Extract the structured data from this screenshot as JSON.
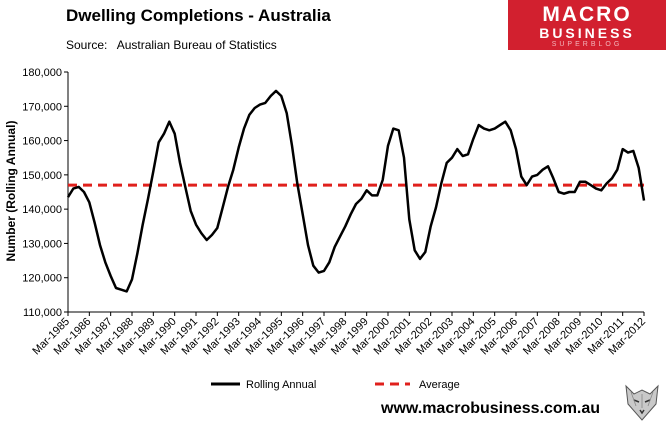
{
  "header": {
    "title": "Dwelling Completions - Australia",
    "source": "Source:   Australian Bureau of Statistics"
  },
  "logo": {
    "line1": "MACRO",
    "line2": "BUSINESS",
    "line3": "SUPERBLOG"
  },
  "footer": {
    "url": "www.macrobusiness.com.au"
  },
  "colors": {
    "series_line": "#000000",
    "average_line": "#e0201c",
    "brand": "#d2202f"
  },
  "wolf_icon": "wolf-emblem-icon",
  "chart_data": {
    "type": "line",
    "title": "Dwelling Completions - Australia",
    "ylabel": "Number (Rolling Annual)",
    "xlabel": "",
    "ylim": [
      110000,
      180000
    ],
    "y_ticks": [
      110000,
      120000,
      130000,
      140000,
      150000,
      160000,
      170000,
      180000
    ],
    "y_tick_labels": [
      "110,000",
      "120,000",
      "130,000",
      "140,000",
      "150,000",
      "160,000",
      "170,000",
      "180,000"
    ],
    "x_tick_labels": [
      "Mar-1985",
      "Mar-1986",
      "Mar-1987",
      "Mar-1988",
      "Mar-1989",
      "Mar-1990",
      "Mar-1991",
      "Mar-1992",
      "Mar-1993",
      "Mar-1994",
      "Mar-1995",
      "Mar-1996",
      "Mar-1997",
      "Mar-1998",
      "Mar-1999",
      "Mar-2000",
      "Mar-2001",
      "Mar-2002",
      "Mar-2003",
      "Mar-2004",
      "Mar-2005",
      "Mar-2006",
      "Mar-2007",
      "Mar-2008",
      "Mar-2009",
      "Mar-2010",
      "Mar-2011",
      "Mar-2012"
    ],
    "grid": false,
    "legend_position": "bottom",
    "series": [
      {
        "name": "Rolling Annual",
        "x": [
          1985.0,
          1985.25,
          1985.5,
          1985.75,
          1986.0,
          1986.25,
          1986.5,
          1986.75,
          1987.0,
          1987.25,
          1987.5,
          1987.75,
          1988.0,
          1988.25,
          1988.5,
          1988.75,
          1989.0,
          1989.25,
          1989.5,
          1989.75,
          1990.0,
          1990.25,
          1990.5,
          1990.75,
          1991.0,
          1991.25,
          1991.5,
          1991.75,
          1992.0,
          1992.25,
          1992.5,
          1992.75,
          1993.0,
          1993.25,
          1993.5,
          1993.75,
          1994.0,
          1994.25,
          1994.5,
          1994.75,
          1995.0,
          1995.25,
          1995.5,
          1995.75,
          1996.0,
          1996.25,
          1996.5,
          1996.75,
          1997.0,
          1997.25,
          1997.5,
          1997.75,
          1998.0,
          1998.25,
          1998.5,
          1998.75,
          1999.0,
          1999.25,
          1999.5,
          1999.75,
          2000.0,
          2000.25,
          2000.5,
          2000.75,
          2001.0,
          2001.25,
          2001.5,
          2001.75,
          2002.0,
          2002.25,
          2002.5,
          2002.75,
          2003.0,
          2003.25,
          2003.5,
          2003.75,
          2004.0,
          2004.25,
          2004.5,
          2004.75,
          2005.0,
          2005.25,
          2005.5,
          2005.75,
          2006.0,
          2006.25,
          2006.5,
          2006.75,
          2007.0,
          2007.25,
          2007.5,
          2007.75,
          2008.0,
          2008.25,
          2008.5,
          2008.75,
          2009.0,
          2009.25,
          2009.5,
          2009.75,
          2010.0,
          2010.25,
          2010.5,
          2010.75,
          2011.0,
          2011.25,
          2011.5,
          2011.75,
          2012.0
        ],
        "values": [
          143500,
          146000,
          146500,
          145000,
          142000,
          136000,
          129500,
          124500,
          120500,
          117000,
          116500,
          116000,
          119500,
          127000,
          135500,
          143000,
          151000,
          159500,
          162000,
          165500,
          162000,
          153500,
          146500,
          139500,
          135500,
          133000,
          131000,
          132500,
          134500,
          140500,
          146500,
          151500,
          158000,
          163500,
          167500,
          169500,
          170500,
          171000,
          173000,
          174500,
          173000,
          168000,
          158500,
          147500,
          138500,
          129500,
          123500,
          121500,
          122000,
          124500,
          129000,
          132000,
          135000,
          138500,
          141500,
          143000,
          145500,
          144000,
          144000,
          148500,
          158500,
          163500,
          163000,
          155000,
          137000,
          128000,
          125500,
          127500,
          135000,
          140500,
          147500,
          153500,
          155000,
          157500,
          155500,
          156000,
          160500,
          164500,
          163500,
          163000,
          163500,
          164500,
          165500,
          163000,
          157500,
          149500,
          147000,
          149500,
          150000,
          151500,
          152500,
          149000,
          145000,
          144500,
          145000,
          145000,
          148000,
          148000,
          147000,
          146000,
          145500,
          147500,
          149000,
          151500,
          157500,
          156500,
          157000,
          152000,
          142500
        ]
      },
      {
        "name": "Average",
        "values": [
          147000
        ]
      }
    ]
  }
}
